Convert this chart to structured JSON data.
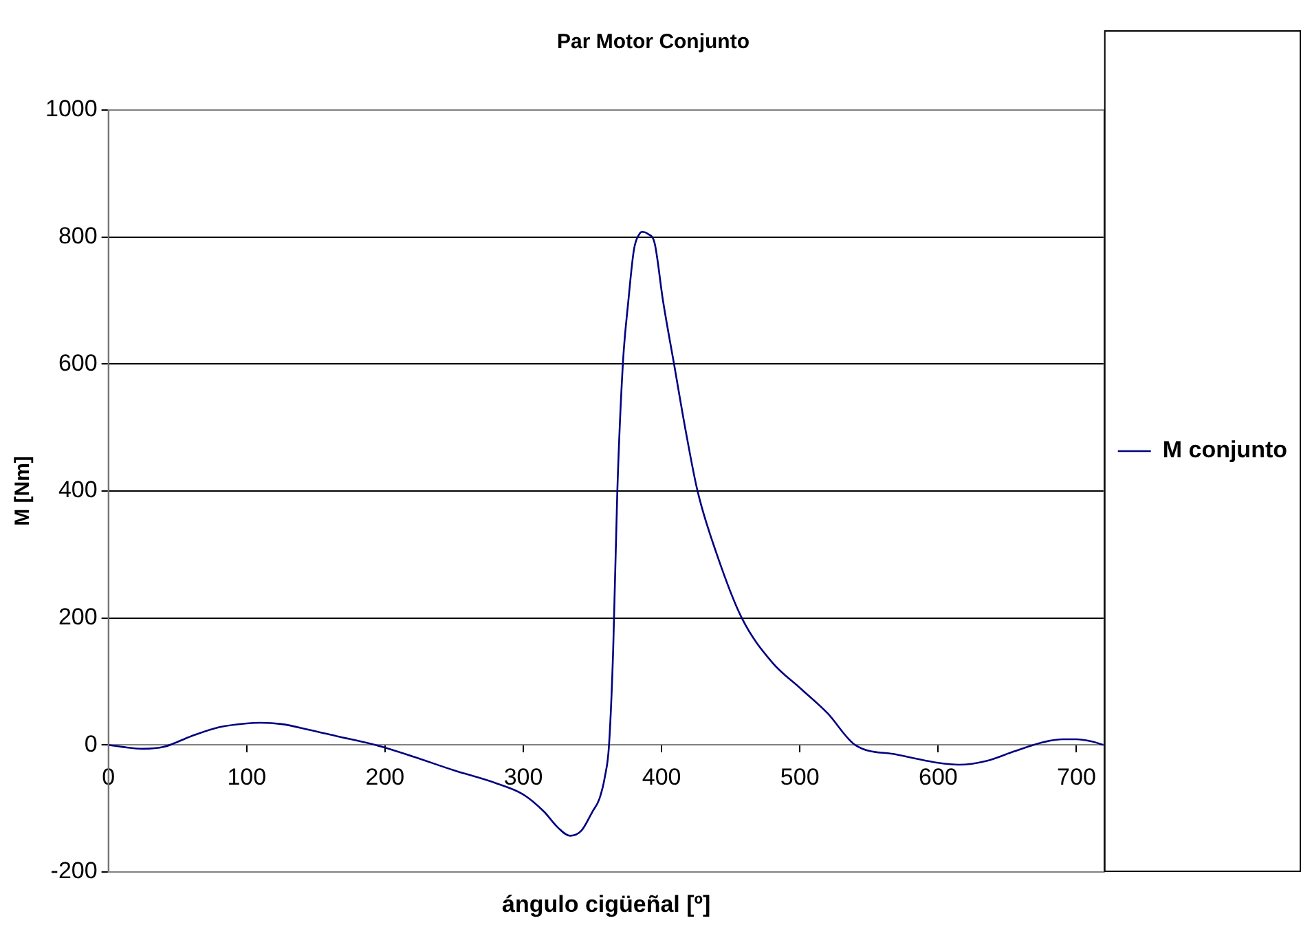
{
  "chart_data": {
    "type": "line",
    "title": "Par Motor Conjunto",
    "xlabel": "ángulo cigüeñal [º]",
    "ylabel": "M [Nm]",
    "x": [
      0,
      10,
      25,
      40,
      60,
      80,
      100,
      110,
      125,
      145,
      165,
      193,
      220,
      250,
      280,
      300,
      315,
      325,
      334,
      342,
      350,
      355,
      359,
      362,
      365,
      368,
      372,
      376,
      380,
      384,
      386,
      390,
      395,
      401,
      409,
      417,
      426,
      440,
      458,
      480,
      500,
      520,
      540,
      570,
      600,
      615,
      635,
      655,
      675,
      690,
      700,
      710,
      720
    ],
    "series": [
      {
        "name": "M conjunto",
        "color": "#000080",
        "values": [
          0,
          -3,
          -6,
          -3,
          14,
          28,
          34,
          35,
          33,
          24,
          14,
          0,
          -18,
          -40,
          -60,
          -78,
          -105,
          -130,
          -143,
          -135,
          -105,
          -85,
          -50,
          0,
          150,
          400,
          600,
          700,
          780,
          805,
          808,
          805,
          790,
          700,
          600,
          500,
          400,
          300,
          200,
          130,
          90,
          50,
          0,
          -15,
          -28,
          -31,
          -25,
          -10,
          4,
          9,
          9,
          6,
          0
        ]
      }
    ],
    "xlim": [
      0,
      720
    ],
    "xticks": [
      0,
      100,
      200,
      300,
      400,
      500,
      600,
      700
    ],
    "ylim": [
      -200,
      1000
    ],
    "yticks": [
      -200,
      0,
      200,
      400,
      600,
      800,
      1000
    ],
    "grid": "y",
    "legend": "right",
    "marker": "none",
    "line_style": "solid"
  }
}
